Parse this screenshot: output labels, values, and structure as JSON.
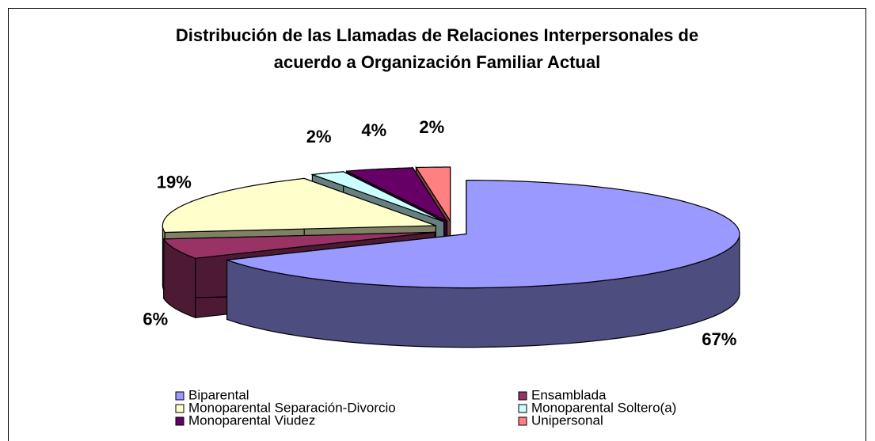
{
  "chart_data": {
    "type": "pie3d",
    "title": "Distribución de las Llamadas de Relaciones Interpersonales de acuerdo a Organización Familiar Actual",
    "categories": [
      "Biparental",
      "Ensamblada",
      "Monoparental Separación-Divorcio",
      "Monoparental Soltero(a)",
      "Monoparental Viudez",
      "Unipersonal"
    ],
    "values": [
      67,
      6,
      19,
      2,
      4,
      2
    ],
    "value_labels": [
      "67%",
      "6%",
      "19%",
      "2%",
      "4%",
      "2%"
    ],
    "colors": [
      "#9999ff",
      "#993366",
      "#ffffcc",
      "#ccffff",
      "#660066",
      "#ff8080"
    ],
    "legend": "bottom"
  }
}
